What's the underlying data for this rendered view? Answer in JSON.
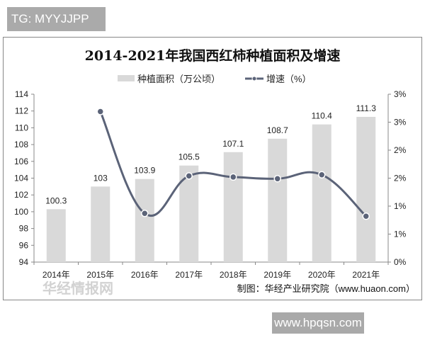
{
  "badge": "TG: MYYJJPP",
  "site_watermark": "www.hpqsn.com",
  "chart_watermark": "华经情报网",
  "chart_data": {
    "type": "bar+line",
    "title": "2014-2021年我国西红柿种植面积及增速",
    "categories": [
      "2014年",
      "2015年",
      "2016年",
      "2017年",
      "2018年",
      "2019年",
      "2020年",
      "2021年"
    ],
    "series": [
      {
        "name": "种植面积（万公顷）",
        "type": "bar",
        "axis": "left",
        "values": [
          100.3,
          103,
          103.9,
          105.5,
          107.1,
          108.7,
          110.4,
          111.3
        ],
        "labels": [
          "100.3",
          "103",
          "103.9",
          "105.5",
          "107.1",
          "108.7",
          "110.4",
          "111.3"
        ],
        "color": "#d9d9d9"
      },
      {
        "name": "增速（%）",
        "type": "line",
        "axis": "right",
        "values": [
          null,
          2.69,
          0.87,
          1.54,
          1.52,
          1.49,
          1.56,
          0.82
        ],
        "color": "#5b6378"
      }
    ],
    "left_axis": {
      "min": 94,
      "max": 114,
      "ticks": [
        "94",
        "96",
        "98",
        "100",
        "102",
        "104",
        "106",
        "108",
        "110",
        "112",
        "114"
      ]
    },
    "right_axis": {
      "min": 0,
      "max": 3,
      "ticks": [
        "0%",
        "1%",
        "1%",
        "2%",
        "2%",
        "3%",
        "3%"
      ]
    },
    "legend": "top",
    "source": "制图：华经产业研究院（www.huaon.com）"
  }
}
